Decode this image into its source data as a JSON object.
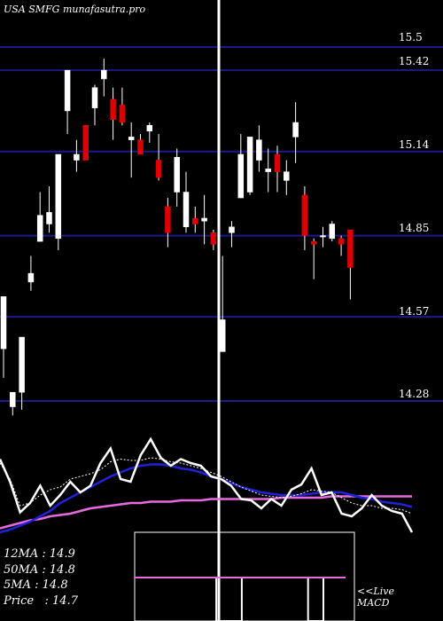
{
  "title": "USA SMFG munafasutra.pro",
  "chart_data": {
    "type": "candlestick",
    "ticker": "SMFG",
    "y_ticks": [
      15.5,
      15.42,
      15.14,
      14.85,
      14.57,
      14.28
    ],
    "y_tick_labels": [
      "15.5",
      "15.42",
      "15.14",
      "14.85",
      "14.57",
      "14.28"
    ],
    "ylim": [
      14.25,
      15.55
    ],
    "candles": [
      {
        "o": 14.46,
        "h": 14.64,
        "l": 14.36,
        "c": 14.64
      },
      {
        "o": 14.26,
        "h": 14.31,
        "l": 14.23,
        "c": 14.31
      },
      {
        "o": 14.31,
        "h": 14.5,
        "l": 14.25,
        "c": 14.5
      },
      {
        "o": 14.69,
        "h": 14.78,
        "l": 14.66,
        "c": 14.72
      },
      {
        "o": 14.83,
        "h": 15.0,
        "l": 14.83,
        "c": 14.92
      },
      {
        "o": 14.89,
        "h": 15.02,
        "l": 14.86,
        "c": 14.93
      },
      {
        "o": 14.84,
        "h": 15.13,
        "l": 14.8,
        "c": 15.13
      },
      {
        "o": 15.28,
        "h": 15.42,
        "l": 15.2,
        "c": 15.42
      },
      {
        "o": 15.11,
        "h": 15.18,
        "l": 15.07,
        "c": 15.13
      },
      {
        "o": 15.23,
        "h": 15.23,
        "l": 15.11,
        "c": 15.11
      },
      {
        "o": 15.29,
        "h": 15.37,
        "l": 15.23,
        "c": 15.36
      },
      {
        "o": 15.39,
        "h": 15.46,
        "l": 15.33,
        "c": 15.42
      },
      {
        "o": 15.32,
        "h": 15.36,
        "l": 15.18,
        "c": 15.25
      },
      {
        "o": 15.3,
        "h": 15.36,
        "l": 15.23,
        "c": 15.24
      },
      {
        "o": 15.18,
        "h": 15.24,
        "l": 15.05,
        "c": 15.19
      },
      {
        "o": 15.18,
        "h": 15.2,
        "l": 15.14,
        "c": 15.13
      },
      {
        "o": 15.21,
        "h": 15.24,
        "l": 15.17,
        "c": 15.23
      },
      {
        "o": 15.11,
        "h": 15.2,
        "l": 15.04,
        "c": 15.05
      },
      {
        "o": 14.95,
        "h": 14.98,
        "l": 14.81,
        "c": 14.86
      },
      {
        "o": 15.0,
        "h": 15.15,
        "l": 14.95,
        "c": 15.12
      },
      {
        "o": 14.88,
        "h": 15.07,
        "l": 14.86,
        "c": 15.0
      },
      {
        "o": 14.91,
        "h": 14.95,
        "l": 14.86,
        "c": 14.89
      },
      {
        "o": 14.9,
        "h": 14.99,
        "l": 14.82,
        "c": 14.91
      },
      {
        "o": 14.86,
        "h": 14.87,
        "l": 14.8,
        "c": 14.82
      },
      {
        "o": 14.45,
        "h": 14.78,
        "l": 14.45,
        "c": 14.56
      },
      {
        "o": 14.86,
        "h": 14.9,
        "l": 14.81,
        "c": 14.88
      },
      {
        "o": 14.98,
        "h": 15.2,
        "l": 14.98,
        "c": 15.13
      },
      {
        "o": 15.0,
        "h": 15.19,
        "l": 14.99,
        "c": 15.19
      },
      {
        "o": 15.11,
        "h": 15.23,
        "l": 15.07,
        "c": 15.18
      },
      {
        "o": 15.07,
        "h": 15.15,
        "l": 15.0,
        "c": 15.08
      },
      {
        "o": 15.13,
        "h": 15.16,
        "l": 15.0,
        "c": 15.07
      },
      {
        "o": 15.04,
        "h": 15.11,
        "l": 14.99,
        "c": 15.07
      },
      {
        "o": 15.19,
        "h": 15.31,
        "l": 15.1,
        "c": 15.24
      },
      {
        "o": 14.99,
        "h": 15.02,
        "l": 14.8,
        "c": 14.85
      },
      {
        "o": 14.83,
        "h": 14.84,
        "l": 14.7,
        "c": 14.82
      },
      {
        "o": 14.85,
        "h": 14.88,
        "l": 14.81,
        "c": 14.85
      },
      {
        "o": 14.84,
        "h": 14.9,
        "l": 14.83,
        "c": 14.89
      },
      {
        "o": 14.84,
        "h": 14.85,
        "l": 14.78,
        "c": 14.82
      },
      {
        "o": 14.87,
        "h": 14.87,
        "l": 14.63,
        "c": 14.74
      }
    ],
    "stats": [
      {
        "label": "12MA",
        "sep": " : ",
        "value": "14.9"
      },
      {
        "label": "50MA",
        "sep": " : ",
        "value": "14.8"
      },
      {
        "label": "5MA",
        "sep": " : ",
        "value": "14.8"
      },
      {
        "label": "Price",
        "sep": "   : ",
        "value": "14.7"
      }
    ],
    "indicator_label_1": "<<Live",
    "indicator_label_2": "MACD",
    "indicator_lines": {
      "white": [
        55,
        38,
        15,
        22,
        35,
        20,
        28,
        38,
        30,
        35,
        52,
        63,
        40,
        38,
        58,
        70,
        56,
        50,
        55,
        52,
        50,
        42,
        40,
        35,
        25,
        24,
        18,
        25,
        20,
        32,
        36,
        48,
        28,
        30,
        14,
        12,
        18,
        28,
        20,
        16,
        14,
        0
      ],
      "dotted": [
        52,
        40,
        20,
        22,
        28,
        32,
        34,
        40,
        42,
        44,
        47,
        53,
        55,
        54,
        54,
        56,
        55,
        53,
        52,
        50,
        48,
        45,
        42,
        38,
        34,
        31,
        28,
        27,
        26,
        27,
        29,
        32,
        31,
        30,
        26,
        22,
        20,
        20,
        18,
        18,
        17,
        14
      ],
      "blue": [
        0,
        2,
        5,
        8,
        12,
        16,
        22,
        26,
        30,
        34,
        38,
        42,
        45,
        48,
        50,
        51,
        51,
        50,
        48,
        47,
        45,
        42,
        40,
        37,
        34,
        32,
        30,
        29,
        28,
        28,
        28,
        29,
        30,
        30,
        30,
        28,
        26,
        25,
        23,
        22,
        21,
        19
      ],
      "magenta": [
        3,
        5,
        7,
        9,
        10,
        12,
        13,
        14,
        16,
        18,
        19,
        20,
        21,
        22,
        22,
        23,
        23,
        23,
        24,
        24,
        24,
        25,
        25,
        25,
        25,
        25,
        25,
        25,
        26,
        26,
        26,
        26,
        26,
        27,
        27,
        27,
        27,
        27,
        27,
        27,
        27,
        27
      ]
    },
    "macd_steps": [
      1,
      1,
      1,
      1,
      1,
      1,
      1,
      1,
      1,
      1,
      1,
      1,
      1,
      1,
      1,
      1,
      0,
      0,
      0,
      0,
      0,
      1,
      1,
      1,
      1,
      1,
      1,
      1,
      1,
      1,
      1,
      1,
      1,
      1,
      0,
      0,
      0,
      1,
      1,
      1,
      1,
      1
    ]
  },
  "colors": {
    "background": "#000000",
    "grid": "#1a1a8c",
    "up_candle": "#ffffff",
    "down_candle": "#dd0000",
    "blue_line": "#1f22d8",
    "magenta_line": "#e86ae0",
    "divider": "#ffffff",
    "macd_box": "#ffffff"
  }
}
